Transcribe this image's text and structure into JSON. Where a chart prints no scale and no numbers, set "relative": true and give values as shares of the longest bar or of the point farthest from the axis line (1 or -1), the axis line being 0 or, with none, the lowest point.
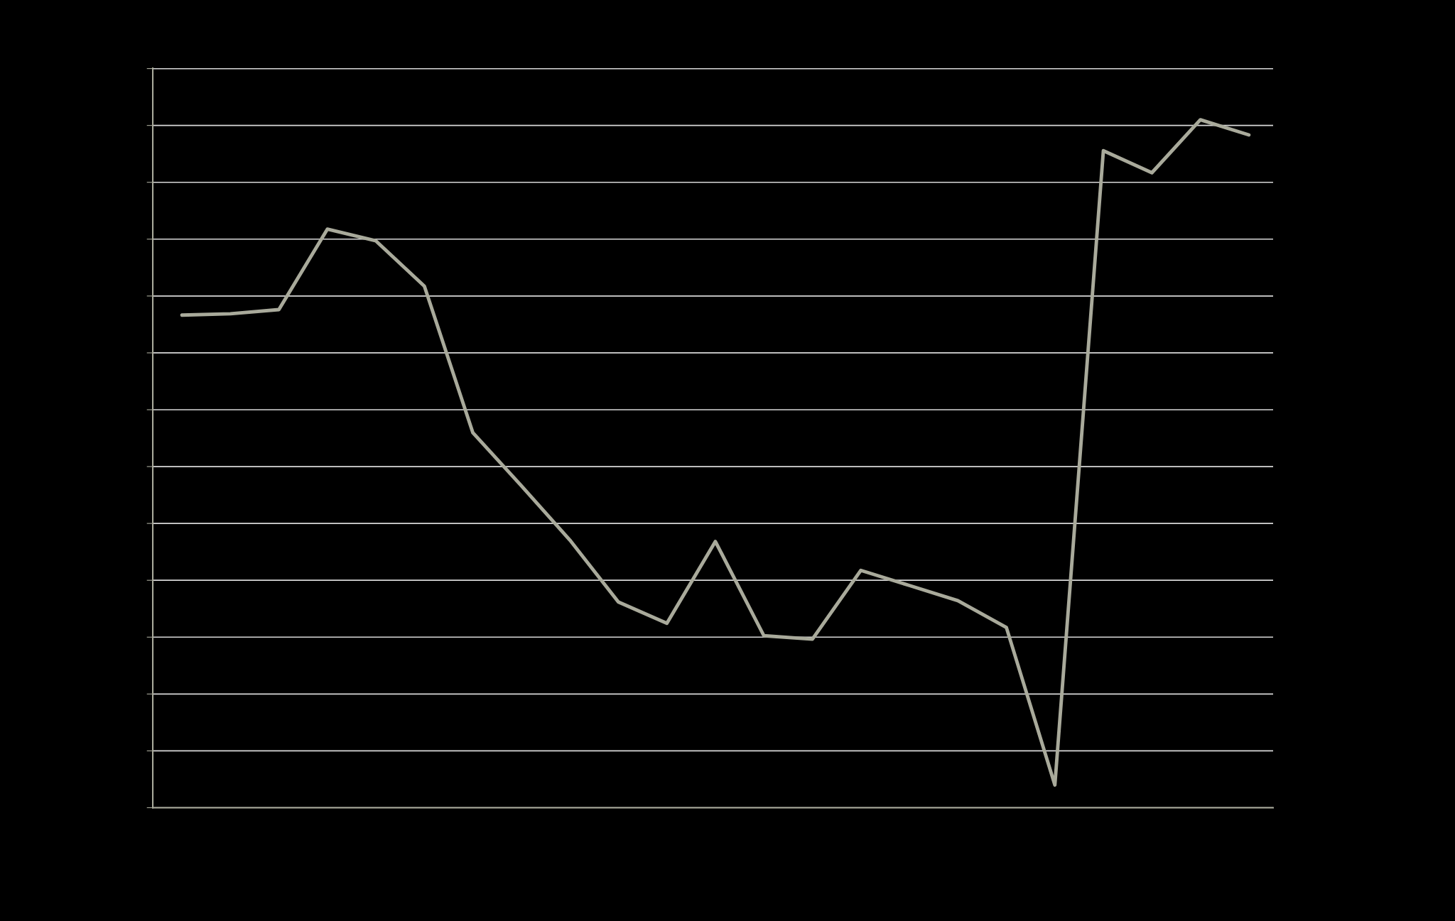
{
  "chart_data": {
    "type": "line",
    "relative": true,
    "grid": "y",
    "marker": "none",
    "line_style": "solid",
    "categories": [
      null,
      null,
      null,
      null,
      null,
      null,
      null,
      null,
      null,
      null,
      null,
      null,
      null,
      null,
      null,
      null,
      null,
      null,
      null,
      null,
      null,
      null,
      null
    ],
    "series": [
      {
        "color": "#a9aa9b",
        "values": [
          0.716,
          0.718,
          0.724,
          0.841,
          0.824,
          0.758,
          0.545,
          0.468,
          0.389,
          0.299,
          0.268,
          0.387,
          0.25,
          0.245,
          0.345,
          0.323,
          0.301,
          0.262,
          0.033,
          0.955,
          0.923,
          1,
          0.978
        ]
      }
    ]
  }
}
